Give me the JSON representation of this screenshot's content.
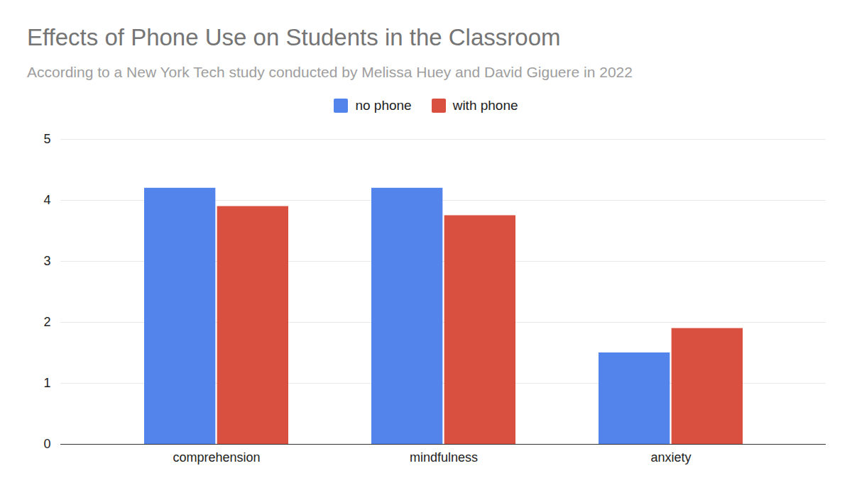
{
  "chart_data": {
    "type": "bar",
    "title": "Effects of Phone Use on Students in the Classroom",
    "subtitle": "According to a New York Tech study conducted by Melissa Huey and David Giguere in 2022",
    "categories": [
      "comprehension",
      "mindfulness",
      "anxiety"
    ],
    "series": [
      {
        "name": "no phone",
        "color": "#5384ec",
        "values": [
          4.2,
          4.2,
          1.5
        ]
      },
      {
        "name": "with phone",
        "color": "#d95040",
        "values": [
          3.9,
          3.75,
          1.9
        ]
      }
    ],
    "ylim": [
      0,
      5
    ],
    "yticks": [
      0,
      1,
      2,
      3,
      4,
      5
    ],
    "grid": true,
    "legend": "top"
  }
}
